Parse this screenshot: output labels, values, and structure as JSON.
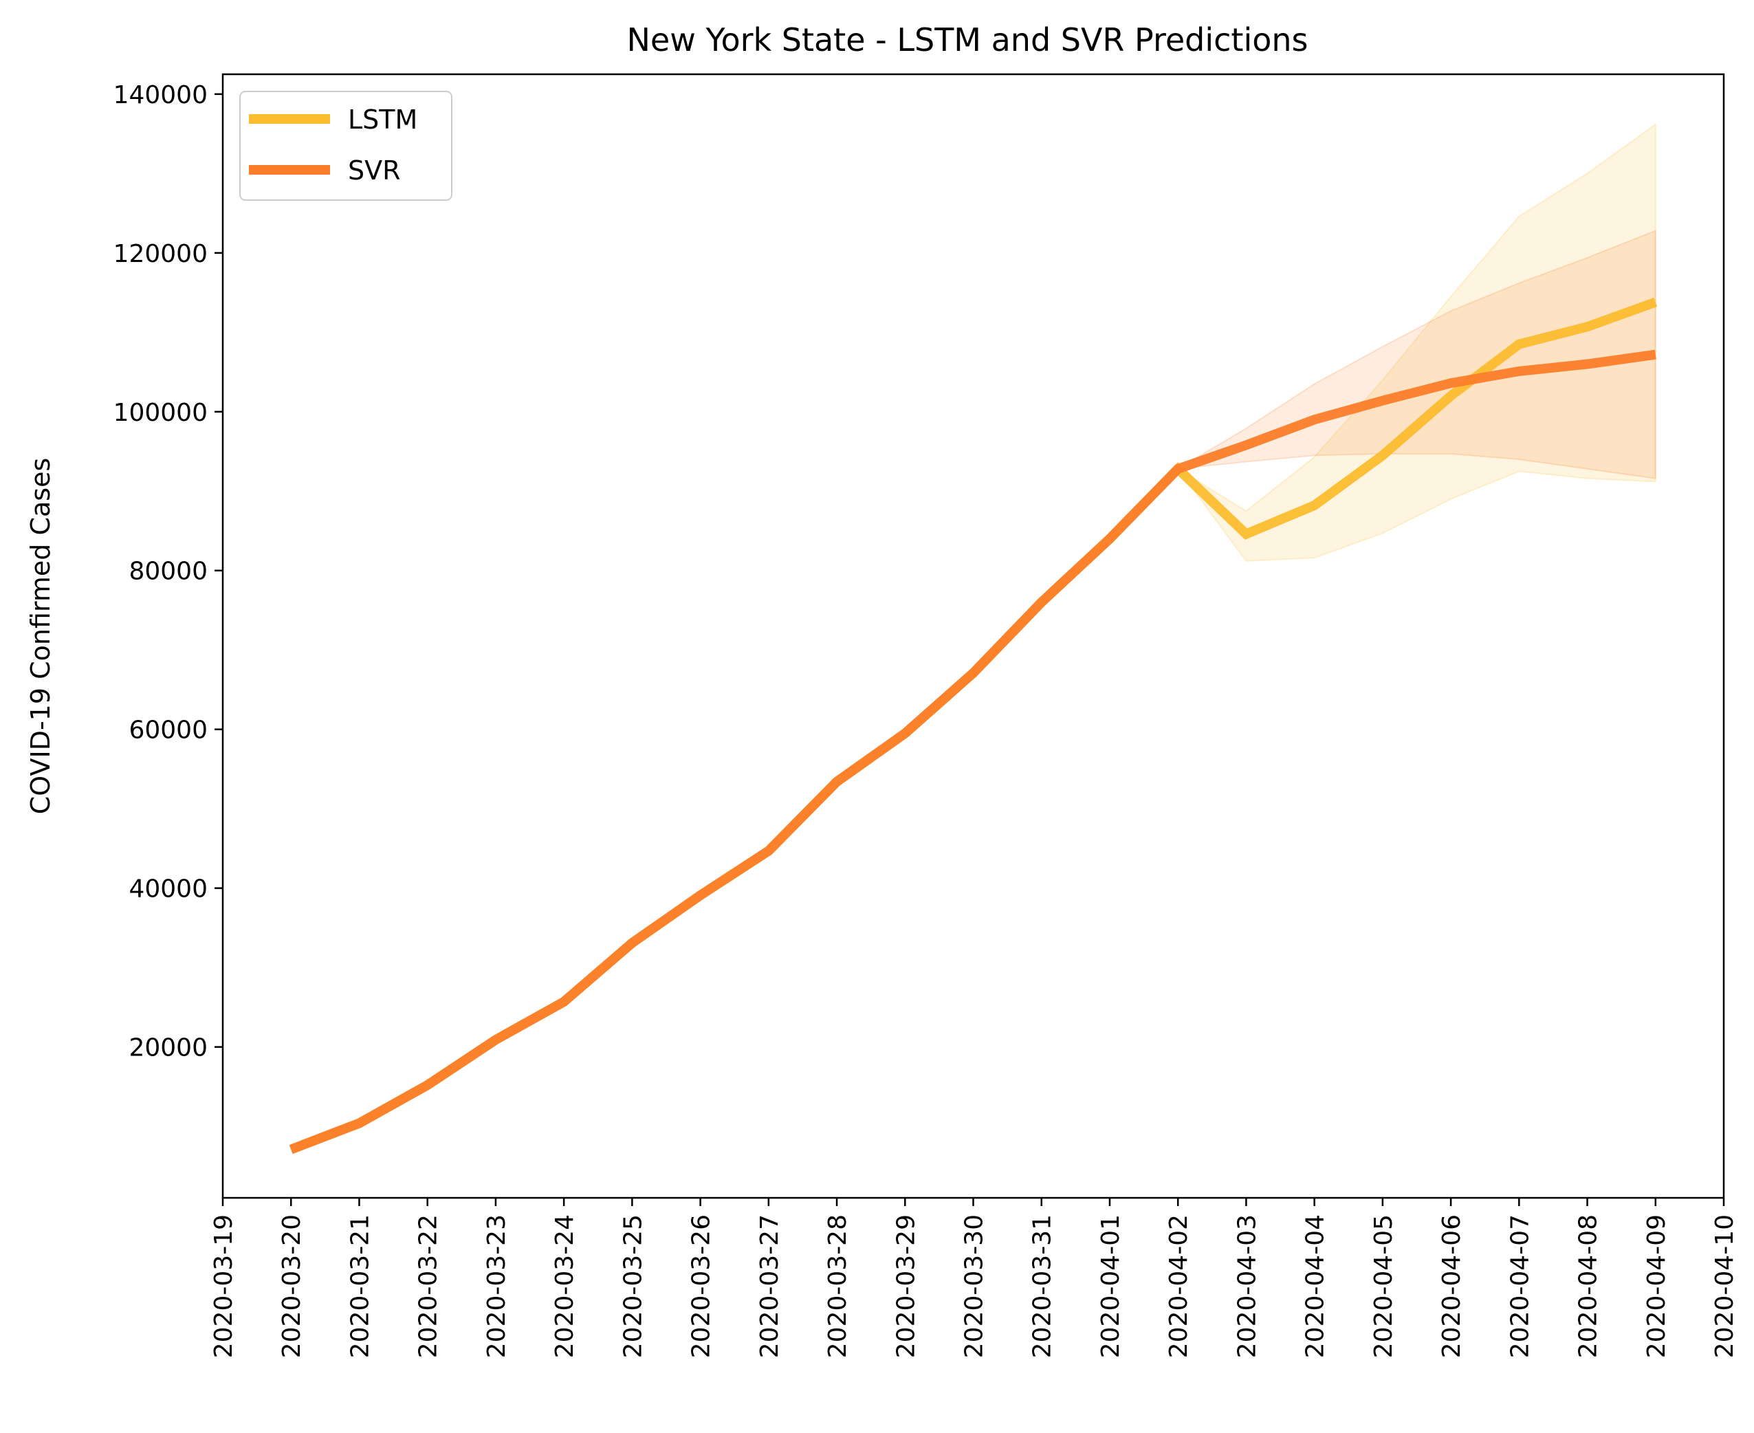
{
  "chart_data": {
    "type": "line",
    "title": "New York State - LSTM and SVR Predictions",
    "xlabel": "",
    "ylabel": "COVID-19 Confirmed Cases",
    "x_axis_type": "date",
    "xlim": [
      "2020-03-19",
      "2020-04-10"
    ],
    "ylim": [
      1000,
      142500
    ],
    "x_ticks": [
      "2020-03-19",
      "2020-03-20",
      "2020-03-21",
      "2020-03-22",
      "2020-03-23",
      "2020-03-24",
      "2020-03-25",
      "2020-03-26",
      "2020-03-27",
      "2020-03-28",
      "2020-03-29",
      "2020-03-30",
      "2020-03-31",
      "2020-04-01",
      "2020-04-02",
      "2020-04-03",
      "2020-04-04",
      "2020-04-05",
      "2020-04-06",
      "2020-04-07",
      "2020-04-08",
      "2020-04-09",
      "2020-04-10"
    ],
    "y_ticks": [
      20000,
      40000,
      60000,
      80000,
      100000,
      120000,
      140000
    ],
    "y_tick_labels": [
      "20000",
      "40000",
      "60000",
      "80000",
      "100000",
      "120000",
      "140000"
    ],
    "grid": false,
    "legend_position": "top-left",
    "series": [
      {
        "name": "LSTM",
        "color": "#fbbc2e",
        "x": [
          "2020-03-20",
          "2020-03-21",
          "2020-03-22",
          "2020-03-23",
          "2020-03-24",
          "2020-03-25",
          "2020-03-26",
          "2020-03-27",
          "2020-03-28",
          "2020-03-29",
          "2020-03-30",
          "2020-03-31",
          "2020-04-01",
          "2020-04-02",
          "2020-04-03",
          "2020-04-04",
          "2020-04-05",
          "2020-04-06",
          "2020-04-07",
          "2020-04-08",
          "2020-04-09"
        ],
        "values": [
          7100,
          10400,
          15200,
          20900,
          25700,
          33100,
          39100,
          44700,
          53400,
          59500,
          67100,
          76000,
          84000,
          92800,
          84600,
          88200,
          94500,
          102000,
          108500,
          110700,
          113800
        ],
        "band_lower": [
          null,
          null,
          null,
          null,
          null,
          null,
          null,
          null,
          null,
          null,
          null,
          null,
          null,
          92800,
          81200,
          81600,
          84700,
          89000,
          92500,
          91600,
          91200
        ],
        "band_upper": [
          null,
          null,
          null,
          null,
          null,
          null,
          null,
          null,
          null,
          null,
          null,
          null,
          null,
          92800,
          87500,
          94300,
          104000,
          114500,
          124600,
          130000,
          136200
        ]
      },
      {
        "name": "SVR",
        "color": "#fb7d2a",
        "x": [
          "2020-03-20",
          "2020-03-21",
          "2020-03-22",
          "2020-03-23",
          "2020-03-24",
          "2020-03-25",
          "2020-03-26",
          "2020-03-27",
          "2020-03-28",
          "2020-03-29",
          "2020-03-30",
          "2020-03-31",
          "2020-04-01",
          "2020-04-02",
          "2020-04-03",
          "2020-04-04",
          "2020-04-05",
          "2020-04-06",
          "2020-04-07",
          "2020-04-08",
          "2020-04-09"
        ],
        "values": [
          7100,
          10400,
          15200,
          20900,
          25700,
          33100,
          39100,
          44700,
          53400,
          59500,
          67100,
          76000,
          84000,
          92800,
          95800,
          99000,
          101400,
          103600,
          105100,
          106000,
          107200
        ],
        "band_lower": [
          null,
          null,
          null,
          null,
          null,
          null,
          null,
          null,
          null,
          null,
          null,
          null,
          null,
          92800,
          93700,
          94500,
          94700,
          94700,
          94000,
          92800,
          91600
        ],
        "band_upper": [
          null,
          null,
          null,
          null,
          null,
          null,
          null,
          null,
          null,
          null,
          null,
          null,
          null,
          92800,
          97900,
          103500,
          108200,
          112700,
          116200,
          119400,
          122800
        ]
      }
    ]
  }
}
